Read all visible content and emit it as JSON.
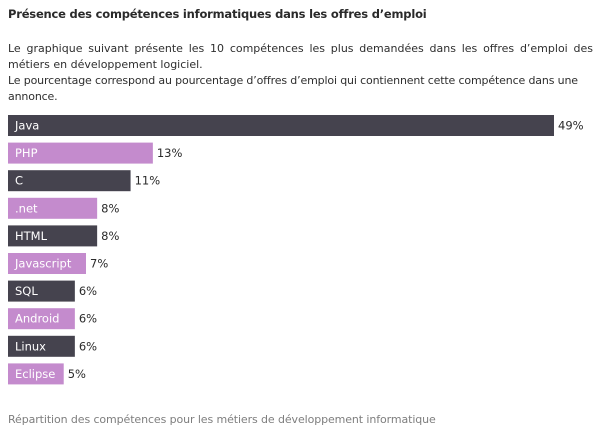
{
  "title": "Présence des compétences informatiques dans les offres d’emploi",
  "intro": {
    "line1": "Le graphique suivant présente les 10 compétences les plus demandées dans les offres d’emploi des métiers en développement logiciel.",
    "line2": "Le pourcentage correspond au pourcentage d’offres d’emploi qui contiennent cette compétence dans une annonce."
  },
  "caption": "Répartition des compétences pour les métiers de développement informatique",
  "colors": {
    "dark": "#45434e",
    "pink": "#c48bcd"
  },
  "chart_data": {
    "type": "bar",
    "orientation": "horizontal",
    "categories": [
      "Java",
      "PHP",
      "C",
      ".net",
      "HTML",
      "Javascript",
      "SQL",
      "Android",
      "Linux",
      "Eclipse"
    ],
    "values": [
      49,
      13,
      11,
      8,
      8,
      7,
      6,
      6,
      6,
      5
    ],
    "value_labels": [
      "49%",
      "13%",
      "11%",
      "8%",
      "8%",
      "7%",
      "6%",
      "6%",
      "6%",
      "5%"
    ],
    "bar_colors": [
      "dark",
      "pink",
      "dark",
      "pink",
      "dark",
      "pink",
      "dark",
      "pink",
      "dark",
      "pink"
    ],
    "unit": "%",
    "grid": false,
    "legend": false
  }
}
